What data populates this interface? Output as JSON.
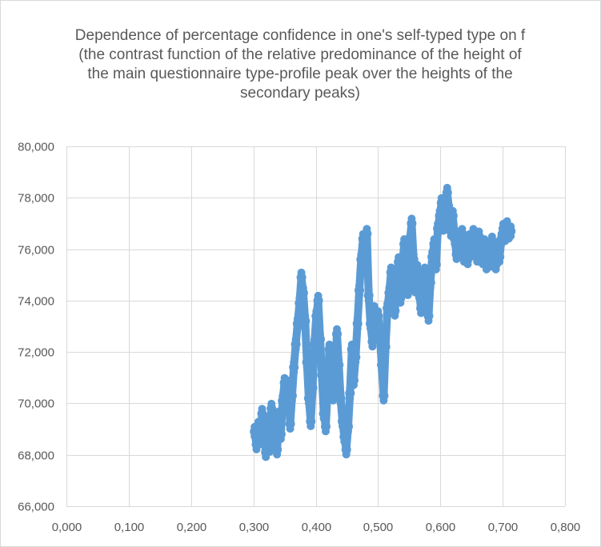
{
  "chart_data": {
    "type": "scatter",
    "title": "Dependence of percentage confidence in one's self-typed type on f\n(the contrast function of the relative predominance of the height of\nthe main questionnaire type-profile peak over the heights of the\nsecondary peaks)",
    "xlabel": "",
    "ylabel": "",
    "xlim": [
      0,
      0.8
    ],
    "ylim": [
      66000,
      80000
    ],
    "x_ticks": [
      "0,000",
      "0,100",
      "0,200",
      "0,300",
      "0,400",
      "0,500",
      "0,600",
      "0,700",
      "0,800"
    ],
    "y_ticks": [
      "66,000",
      "68,000",
      "70,000",
      "72,000",
      "74,000",
      "76,000",
      "78,000",
      "80,000"
    ],
    "grid": true,
    "legend": "none",
    "marker_color": "#5b9bd5",
    "points": [
      [
        0.302,
        68.9
      ],
      [
        0.305,
        68.4
      ],
      [
        0.308,
        69.1
      ],
      [
        0.311,
        68.6
      ],
      [
        0.314,
        69.6
      ],
      [
        0.317,
        68.9
      ],
      [
        0.32,
        68.1
      ],
      [
        0.323,
        69.3
      ],
      [
        0.326,
        68.3
      ],
      [
        0.329,
        69.8
      ],
      [
        0.332,
        68.7
      ],
      [
        0.335,
        69.0
      ],
      [
        0.338,
        68.2
      ],
      [
        0.341,
        69.5
      ],
      [
        0.344,
        68.8
      ],
      [
        0.347,
        70.1
      ],
      [
        0.35,
        70.8
      ],
      [
        0.353,
        69.9
      ],
      [
        0.356,
        70.7
      ],
      [
        0.359,
        69.2
      ],
      [
        0.362,
        70.3
      ],
      [
        0.365,
        71.4
      ],
      [
        0.368,
        72.3
      ],
      [
        0.371,
        73.1
      ],
      [
        0.374,
        73.9
      ],
      [
        0.377,
        74.9
      ],
      [
        0.38,
        74.3
      ],
      [
        0.383,
        73.2
      ],
      [
        0.386,
        71.6
      ],
      [
        0.389,
        70.2
      ],
      [
        0.392,
        69.3
      ],
      [
        0.395,
        70.6
      ],
      [
        0.398,
        72.3
      ],
      [
        0.401,
        73.4
      ],
      [
        0.404,
        74.0
      ],
      [
        0.407,
        72.5
      ],
      [
        0.41,
        71.1
      ],
      [
        0.413,
        69.6
      ],
      [
        0.416,
        69.1
      ],
      [
        0.419,
        70.5
      ],
      [
        0.422,
        72.1
      ],
      [
        0.425,
        71.6
      ],
      [
        0.428,
        70.3
      ],
      [
        0.431,
        71.2
      ],
      [
        0.434,
        72.7
      ],
      [
        0.437,
        71.5
      ],
      [
        0.44,
        70.2
      ],
      [
        0.443,
        69.3
      ],
      [
        0.446,
        68.7
      ],
      [
        0.449,
        68.2
      ],
      [
        0.452,
        69.1
      ],
      [
        0.455,
        70.4
      ],
      [
        0.458,
        72.1
      ],
      [
        0.461,
        70.9
      ],
      [
        0.464,
        71.8
      ],
      [
        0.467,
        73.1
      ],
      [
        0.47,
        74.4
      ],
      [
        0.473,
        75.6
      ],
      [
        0.476,
        76.4
      ],
      [
        0.479,
        75.3
      ],
      [
        0.482,
        76.6
      ],
      [
        0.485,
        74.2
      ],
      [
        0.488,
        73.1
      ],
      [
        0.491,
        72.4
      ],
      [
        0.494,
        73.6
      ],
      [
        0.497,
        72.8
      ],
      [
        0.5,
        73.4
      ],
      [
        0.503,
        72.6
      ],
      [
        0.506,
        71.5
      ],
      [
        0.509,
        70.3
      ],
      [
        0.512,
        72.2
      ],
      [
        0.515,
        73.7
      ],
      [
        0.518,
        74.3
      ],
      [
        0.521,
        75.1
      ],
      [
        0.524,
        74.6
      ],
      [
        0.527,
        73.6
      ],
      [
        0.53,
        74.8
      ],
      [
        0.533,
        75.5
      ],
      [
        0.536,
        74.1
      ],
      [
        0.539,
        75.3
      ],
      [
        0.542,
        76.2
      ],
      [
        0.545,
        75.2
      ],
      [
        0.548,
        74.4
      ],
      [
        0.551,
        76.3
      ],
      [
        0.554,
        77.0
      ],
      [
        0.557,
        75.6
      ],
      [
        0.56,
        74.5
      ],
      [
        0.563,
        75.2
      ],
      [
        0.566,
        74.3
      ],
      [
        0.569,
        73.7
      ],
      [
        0.572,
        74.4
      ],
      [
        0.575,
        75.1
      ],
      [
        0.578,
        74.2
      ],
      [
        0.581,
        73.4
      ],
      [
        0.584,
        74.7
      ],
      [
        0.587,
        75.7
      ],
      [
        0.59,
        76.2
      ],
      [
        0.593,
        75.4
      ],
      [
        0.596,
        76.8
      ],
      [
        0.599,
        77.3
      ],
      [
        0.602,
        77.8
      ],
      [
        0.605,
        76.9
      ],
      [
        0.608,
        77.6
      ],
      [
        0.611,
        78.2
      ],
      [
        0.614,
        77.5
      ],
      [
        0.617,
        76.7
      ],
      [
        0.62,
        77.3
      ],
      [
        0.623,
        76.4
      ],
      [
        0.626,
        75.8
      ],
      [
        0.629,
        76.5
      ],
      [
        0.632,
        75.9
      ],
      [
        0.635,
        76.6
      ],
      [
        0.638,
        75.7
      ],
      [
        0.641,
        76.3
      ],
      [
        0.644,
        75.6
      ],
      [
        0.647,
        76.4
      ],
      [
        0.65,
        75.9
      ],
      [
        0.653,
        76.6
      ],
      [
        0.656,
        76.1
      ],
      [
        0.659,
        75.7
      ],
      [
        0.662,
        76.5
      ],
      [
        0.665,
        76.0
      ],
      [
        0.668,
        75.6
      ],
      [
        0.671,
        76.2
      ],
      [
        0.674,
        75.4
      ],
      [
        0.677,
        75.8
      ],
      [
        0.68,
        75.5
      ],
      [
        0.683,
        76.3
      ],
      [
        0.686,
        75.9
      ],
      [
        0.689,
        75.4
      ],
      [
        0.692,
        76.1
      ],
      [
        0.695,
        75.7
      ],
      [
        0.698,
        76.4
      ],
      [
        0.701,
        76.8
      ],
      [
        0.704,
        76.5
      ],
      [
        0.707,
        76.9
      ],
      [
        0.71,
        76.6
      ],
      [
        0.713,
        76.7
      ]
    ]
  }
}
